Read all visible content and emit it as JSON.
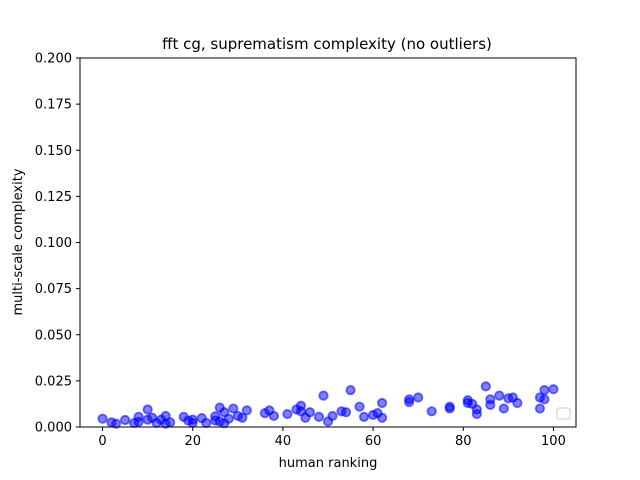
{
  "chart_data": {
    "type": "scatter",
    "title": "fft cg, suprematism complexity (no outliers)",
    "xlabel": "human ranking",
    "ylabel": "multi-scale complexity",
    "xlim": [
      -5,
      105
    ],
    "ylim": [
      0,
      0.2
    ],
    "xticks": [
      0,
      20,
      40,
      60,
      80,
      100
    ],
    "yticks": [
      0.0,
      0.025,
      0.05,
      0.075,
      0.1,
      0.125,
      0.15,
      0.175,
      0.2
    ],
    "ytick_labels": [
      "0.000",
      "0.025",
      "0.050",
      "0.075",
      "0.100",
      "0.125",
      "0.150",
      "0.175",
      "0.200"
    ],
    "grid": false,
    "legend": "lower-right (empty)",
    "marker_color": "#0000ff",
    "series": [
      {
        "points": [
          [
            0,
            0.0045
          ],
          [
            2,
            0.0025
          ],
          [
            3,
            0.0018
          ],
          [
            5,
            0.0038
          ],
          [
            7,
            0.0022
          ],
          [
            8,
            0.0055
          ],
          [
            8,
            0.0028
          ],
          [
            10,
            0.0095
          ],
          [
            10,
            0.004
          ],
          [
            11,
            0.005
          ],
          [
            12,
            0.0022
          ],
          [
            13,
            0.004
          ],
          [
            14,
            0.006
          ],
          [
            14,
            0.0018
          ],
          [
            15,
            0.0025
          ],
          [
            18,
            0.0055
          ],
          [
            19,
            0.0035
          ],
          [
            20,
            0.004
          ],
          [
            20,
            0.0022
          ],
          [
            22,
            0.0048
          ],
          [
            23,
            0.0022
          ],
          [
            25,
            0.0058
          ],
          [
            25,
            0.0035
          ],
          [
            26,
            0.0105
          ],
          [
            26,
            0.003
          ],
          [
            27,
            0.002
          ],
          [
            27,
            0.008
          ],
          [
            28,
            0.0045
          ],
          [
            29,
            0.01
          ],
          [
            30,
            0.006
          ],
          [
            31,
            0.005
          ],
          [
            32,
            0.009
          ],
          [
            36,
            0.0075
          ],
          [
            37,
            0.009
          ],
          [
            38,
            0.006
          ],
          [
            41,
            0.007
          ],
          [
            43,
            0.0095
          ],
          [
            44,
            0.0115
          ],
          [
            44,
            0.0085
          ],
          [
            45,
            0.005
          ],
          [
            46,
            0.008
          ],
          [
            48,
            0.0055
          ],
          [
            49,
            0.017
          ],
          [
            50,
            0.003
          ],
          [
            51,
            0.006
          ],
          [
            53,
            0.0085
          ],
          [
            54,
            0.008
          ],
          [
            55,
            0.02
          ],
          [
            57,
            0.011
          ],
          [
            58,
            0.0055
          ],
          [
            60,
            0.0065
          ],
          [
            61,
            0.0075
          ],
          [
            62,
            0.013
          ],
          [
            62,
            0.005
          ],
          [
            68,
            0.015
          ],
          [
            68,
            0.0135
          ],
          [
            70,
            0.016
          ],
          [
            73,
            0.0085
          ],
          [
            77,
            0.011
          ],
          [
            77,
            0.01
          ],
          [
            81,
            0.0145
          ],
          [
            81,
            0.013
          ],
          [
            82,
            0.0125
          ],
          [
            83,
            0.0095
          ],
          [
            83,
            0.007
          ],
          [
            85,
            0.022
          ],
          [
            86,
            0.015
          ],
          [
            86,
            0.012
          ],
          [
            88,
            0.017
          ],
          [
            89,
            0.01
          ],
          [
            90,
            0.0155
          ],
          [
            91,
            0.016
          ],
          [
            92,
            0.013
          ],
          [
            97,
            0.016
          ],
          [
            97,
            0.01
          ],
          [
            98,
            0.02
          ],
          [
            98,
            0.015
          ],
          [
            100,
            0.0205
          ]
        ]
      }
    ]
  }
}
